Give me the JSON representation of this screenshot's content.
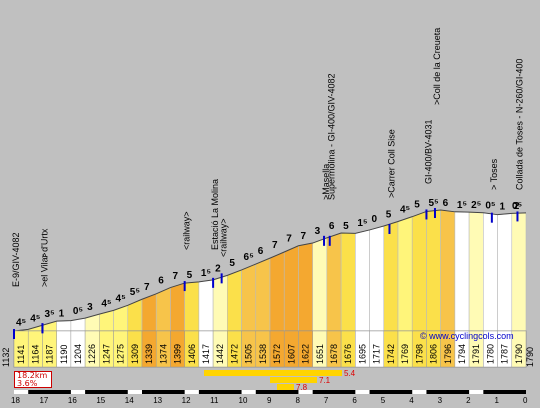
{
  "chart_data": {
    "type": "area",
    "title": "",
    "xlabel": "",
    "ylabel": "",
    "x_axis_km": [
      18,
      17,
      16,
      15,
      14,
      13,
      12,
      11,
      10,
      9,
      8,
      7,
      6,
      5,
      4,
      3,
      2,
      1,
      0
    ],
    "segments": [
      {
        "km_to": 18,
        "elevation": 1132,
        "grade": "4⁵"
      },
      {
        "km_to": 17.5,
        "elevation": 1141,
        "grade": "4⁵"
      },
      {
        "km_to": 17,
        "elevation": 1164,
        "grade": "3⁵"
      },
      {
        "km_to": 16.5,
        "elevation": 1187,
        "grade": "1"
      },
      {
        "km_to": 16,
        "elevation": 1190,
        "grade": "0⁵"
      },
      {
        "km_to": 15.5,
        "elevation": 1204,
        "grade": "3"
      },
      {
        "km_to": 15,
        "elevation": 1226,
        "grade": "4⁵"
      },
      {
        "km_to": 14.5,
        "elevation": 1247,
        "grade": "4⁵"
      },
      {
        "km_to": 14,
        "elevation": 1275,
        "grade": "5⁵"
      },
      {
        "km_to": 13.5,
        "elevation": 1309,
        "grade": "7"
      },
      {
        "km_to": 13,
        "elevation": 1339,
        "grade": "6"
      },
      {
        "km_to": 12.5,
        "elevation": 1374,
        "grade": "7"
      },
      {
        "km_to": 12,
        "elevation": 1399,
        "grade": "5"
      },
      {
        "km_to": 11.5,
        "elevation": 1406,
        "grade": "1⁵"
      },
      {
        "km_to": 11,
        "elevation": 1417,
        "grade": "2"
      },
      {
        "km_to": 10.5,
        "elevation": 1442,
        "grade": "5"
      },
      {
        "km_to": 10,
        "elevation": 1472,
        "grade": "6⁵"
      },
      {
        "km_to": 9.5,
        "elevation": 1505,
        "grade": "6"
      },
      {
        "km_to": 9,
        "elevation": 1538,
        "grade": "7"
      },
      {
        "km_to": 8.5,
        "elevation": 1572,
        "grade": "7"
      },
      {
        "km_to": 8,
        "elevation": 1607,
        "grade": "7"
      },
      {
        "km_to": 7.5,
        "elevation": 1622,
        "grade": "3"
      },
      {
        "km_to": 7,
        "elevation": 1651,
        "grade": "6"
      },
      {
        "km_to": 6.5,
        "elevation": 1678,
        "grade": "5"
      },
      {
        "km_to": 6,
        "elevation": 1676,
        "grade": "1⁵"
      },
      {
        "km_to": 5.5,
        "elevation": 1695,
        "grade": "0"
      },
      {
        "km_to": 5,
        "elevation": 1717,
        "grade": "5"
      },
      {
        "km_to": 4.5,
        "elevation": 1742,
        "grade": "4⁵"
      },
      {
        "km_to": 4,
        "elevation": 1769,
        "grade": "5"
      },
      {
        "km_to": 3.5,
        "elevation": 1798,
        "grade": "5⁵"
      },
      {
        "km_to": 3,
        "elevation": 1806,
        "grade": "6"
      },
      {
        "km_to": 2.5,
        "elevation": 1796,
        "grade": "1⁵"
      },
      {
        "km_to": 2,
        "elevation": 1794,
        "grade": "2⁵"
      },
      {
        "km_to": 1.5,
        "elevation": 1791,
        "grade": "0⁵"
      },
      {
        "km_to": 1,
        "elevation": 1780,
        "grade": "1"
      },
      {
        "km_to": 0.5,
        "elevation": 1787,
        "grade": "2"
      },
      {
        "km_to": 0,
        "elevation": 1790,
        "grade": "1⁵"
      }
    ],
    "final_grade": "0⁵",
    "start_elevation": "1132",
    "end_elevation": "1790",
    "landmarks": [
      {
        "km": 18,
        "label": "E-9/GIV-4082"
      },
      {
        "km": 17,
        "label": ">el Vilar d'Urtx"
      },
      {
        "km": 17,
        "label": ">"
      },
      {
        "km": 12,
        "label": "<railway>"
      },
      {
        "km": 11,
        "label": "Estació La Molina"
      },
      {
        "km": 10.7,
        "label": "<railway>"
      },
      {
        "km": 7.1,
        "label": ">Masella"
      },
      {
        "km": 6.9,
        "label": "Supermolina - GI-400/GIV-4082"
      },
      {
        "km": 4.8,
        "label": ">Carrer Coll Sise"
      },
      {
        "km": 3.5,
        "label": "GI-400/BV-4031"
      },
      {
        "km": 3.2,
        "label": ">Coll de la Creueta"
      },
      {
        "km": 1.2,
        "label": "> Toses"
      },
      {
        "km": 0.3,
        "label": "Collada de Toses - N-260/GI-400"
      }
    ],
    "max_grades": [
      {
        "label": "5.4",
        "color": "#dd0000"
      },
      {
        "label": "7.1",
        "color": "#dd0000"
      },
      {
        "label": "7.8",
        "color": "#dd0000"
      }
    ],
    "summary": {
      "distance": "18.2km",
      "average": "3.6%"
    },
    "site": "© www.cyclingcols.com"
  }
}
